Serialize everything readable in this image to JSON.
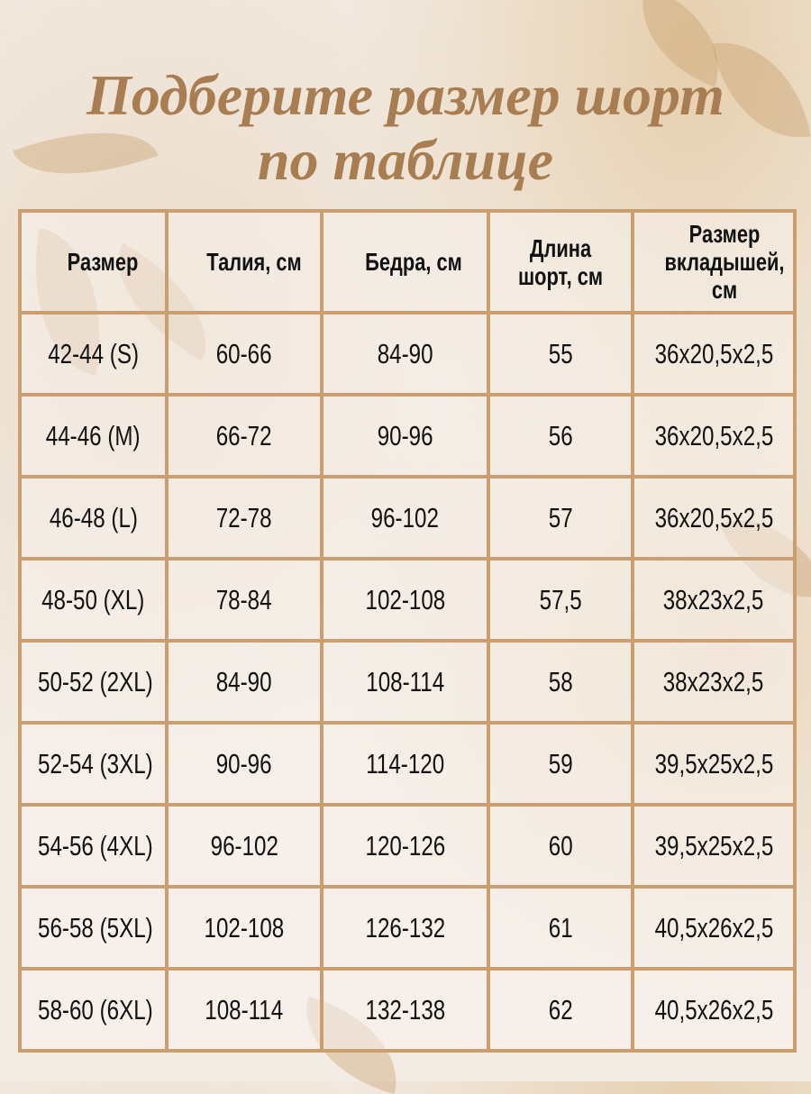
{
  "title_line1": "Подберите размер шорт",
  "title_line2": "по таблице",
  "colors": {
    "title": "#a87d52",
    "border": "#c99e70",
    "background": "#f3ece4"
  },
  "table": {
    "headers": [
      "Размер",
      "Талия, см",
      "Бедра, см",
      "Длина шорт, см",
      "Размер вкладышей, см"
    ],
    "rows": [
      [
        "42-44 (S)",
        "60-66",
        "84-90",
        "55",
        "36x20,5x2,5"
      ],
      [
        "44-46 (M)",
        "66-72",
        "90-96",
        "56",
        "36x20,5x2,5"
      ],
      [
        "46-48 (L)",
        "72-78",
        "96-102",
        "57",
        "36x20,5x2,5"
      ],
      [
        "48-50 (XL)",
        "78-84",
        "102-108",
        "57,5",
        "38x23x2,5"
      ],
      [
        "50-52 (2XL)",
        "84-90",
        "108-114",
        "58",
        "38x23x2,5"
      ],
      [
        "52-54 (3XL)",
        "90-96",
        "114-120",
        "59",
        "39,5x25x2,5"
      ],
      [
        "54-56 (4XL)",
        "96-102",
        "120-126",
        "60",
        "39,5x25x2,5"
      ],
      [
        "56-58 (5XL)",
        "102-108",
        "126-132",
        "61",
        "40,5x26x2,5"
      ],
      [
        "58-60 (6XL)",
        "108-114",
        "132-138",
        "62",
        "40,5x26x2,5"
      ]
    ]
  }
}
